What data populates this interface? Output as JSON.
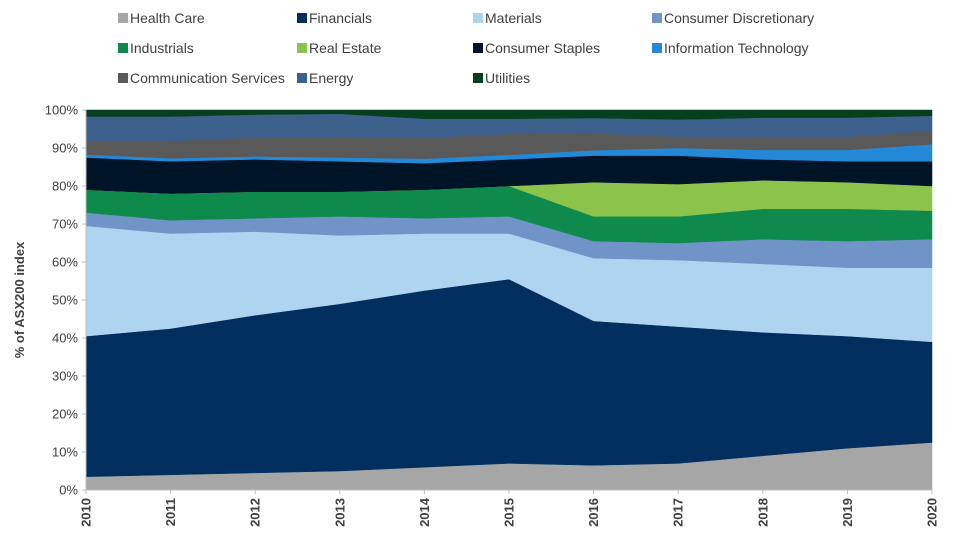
{
  "chart_data": {
    "type": "area",
    "stacked": true,
    "ylabel": "% of ASX200 index",
    "xlabel": "",
    "ylim": [
      0,
      100
    ],
    "y_ticks": [
      "0%",
      "10%",
      "20%",
      "30%",
      "40%",
      "50%",
      "60%",
      "70%",
      "80%",
      "90%",
      "100%"
    ],
    "y_tick_values": [
      0,
      10,
      20,
      30,
      40,
      50,
      60,
      70,
      80,
      90,
      100
    ],
    "categories": [
      "2010",
      "2011",
      "2012",
      "2013",
      "2014",
      "2015",
      "2016",
      "2017",
      "2018",
      "2019",
      "2020"
    ],
    "legend_position": "top",
    "grid": false,
    "series": [
      {
        "name": "Health Care",
        "color": "#a6a6a6",
        "values": [
          3.5,
          4,
          4.5,
          5,
          6,
          7,
          6.5,
          7,
          9,
          11,
          12.5
        ]
      },
      {
        "name": "Financials",
        "color": "#002f5f",
        "values": [
          37,
          38.5,
          41.5,
          44,
          46.5,
          48.5,
          38,
          36,
          32.5,
          29.5,
          26.5
        ]
      },
      {
        "name": "Materials",
        "color": "#aed4f0",
        "values": [
          29,
          25,
          22,
          18,
          15,
          12,
          16.5,
          17.5,
          18,
          18,
          19.5
        ]
      },
      {
        "name": "Consumer Discretionary",
        "color": "#7094c8",
        "values": [
          3.5,
          3.5,
          3.5,
          5,
          4,
          4.5,
          4.5,
          4.5,
          6.5,
          7,
          7.5
        ]
      },
      {
        "name": "Industrials",
        "color": "#0e8a4d",
        "values": [
          6,
          7,
          7,
          6.5,
          7.5,
          8,
          6.5,
          7,
          8,
          8.5,
          7.5
        ]
      },
      {
        "name": "Real Estate",
        "color": "#8cc34b",
        "values": [
          0,
          0,
          0,
          0,
          0,
          0,
          9,
          8.5,
          7.5,
          7,
          6.5
        ]
      },
      {
        "name": "Consumer Staples",
        "color": "#001428",
        "values": [
          8.5,
          8.5,
          8.5,
          8,
          7,
          7,
          7,
          7.5,
          5.5,
          5.5,
          6.5
        ]
      },
      {
        "name": "Information Technology",
        "color": "#2389d7",
        "values": [
          0.8,
          0.8,
          0.8,
          1,
          1.2,
          1.2,
          1.4,
          2,
          2.5,
          3,
          4.5
        ]
      },
      {
        "name": "Communication Services",
        "color": "#595959",
        "values": [
          3.5,
          4.5,
          5,
          5.5,
          5.5,
          5.5,
          4.5,
          3,
          3.5,
          3.5,
          3.5
        ]
      },
      {
        "name": "Energy",
        "color": "#3d5f8c",
        "values": [
          6.5,
          6.5,
          6,
          6,
          5,
          4,
          4,
          4.5,
          5,
          5,
          4
        ]
      },
      {
        "name": "Utilities",
        "color": "#053f1e",
        "values": [
          1.7,
          1.7,
          1.2,
          1,
          1.3,
          2.3,
          2.1,
          2.5,
          2,
          2,
          1.5
        ]
      }
    ]
  }
}
